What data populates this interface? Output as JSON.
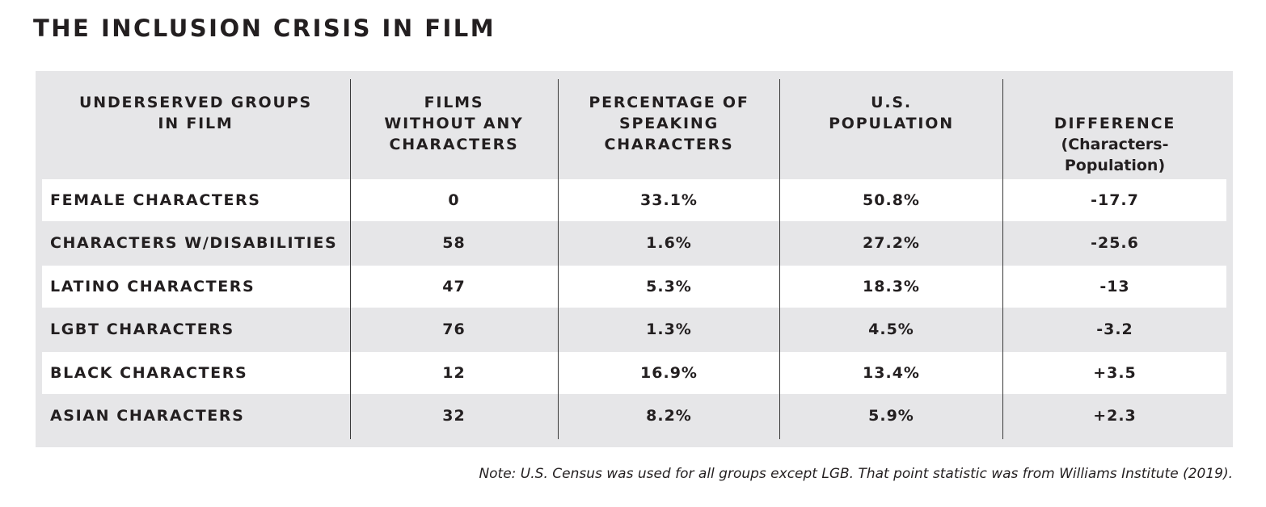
{
  "title": "THE INCLUSION CRISIS IN FILM",
  "columns": [
    {
      "label": "UNDERSERVED GROUPS\nIN FILM"
    },
    {
      "label": "FILMS\nWITHOUT ANY\nCHARACTERS"
    },
    {
      "label": "PERCENTAGE OF\nSPEAKING\nCHARACTERS"
    },
    {
      "label": "U.S.\nPOPULATION"
    },
    {
      "label": "DIFFERENCE",
      "sublabel": "(Characters-\nPopulation)"
    }
  ],
  "rows": [
    {
      "group": "FEMALE CHARACTERS",
      "films_without": "0",
      "pct_speaking": "33.1%",
      "us_population": "50.8%",
      "difference": "-17.7"
    },
    {
      "group": "CHARACTERS W/DISABILITIES",
      "films_without": "58",
      "pct_speaking": "1.6%",
      "us_population": "27.2%",
      "difference": "-25.6"
    },
    {
      "group": "LATINO CHARACTERS",
      "films_without": "47",
      "pct_speaking": "5.3%",
      "us_population": "18.3%",
      "difference": "-13"
    },
    {
      "group": "LGBT CHARACTERS",
      "films_without": "76",
      "pct_speaking": "1.3%",
      "us_population": "4.5%",
      "difference": "-3.2"
    },
    {
      "group": "BLACK CHARACTERS",
      "films_without": "12",
      "pct_speaking": "16.9%",
      "us_population": "13.4%",
      "difference": "+3.5"
    },
    {
      "group": "ASIAN CHARACTERS",
      "films_without": "32",
      "pct_speaking": "8.2%",
      "us_population": "5.9%",
      "difference": "+2.3"
    }
  ],
  "note": "Note: U.S. Census was used for all groups except LGB. That point statistic was from Williams Institute (2019)."
}
